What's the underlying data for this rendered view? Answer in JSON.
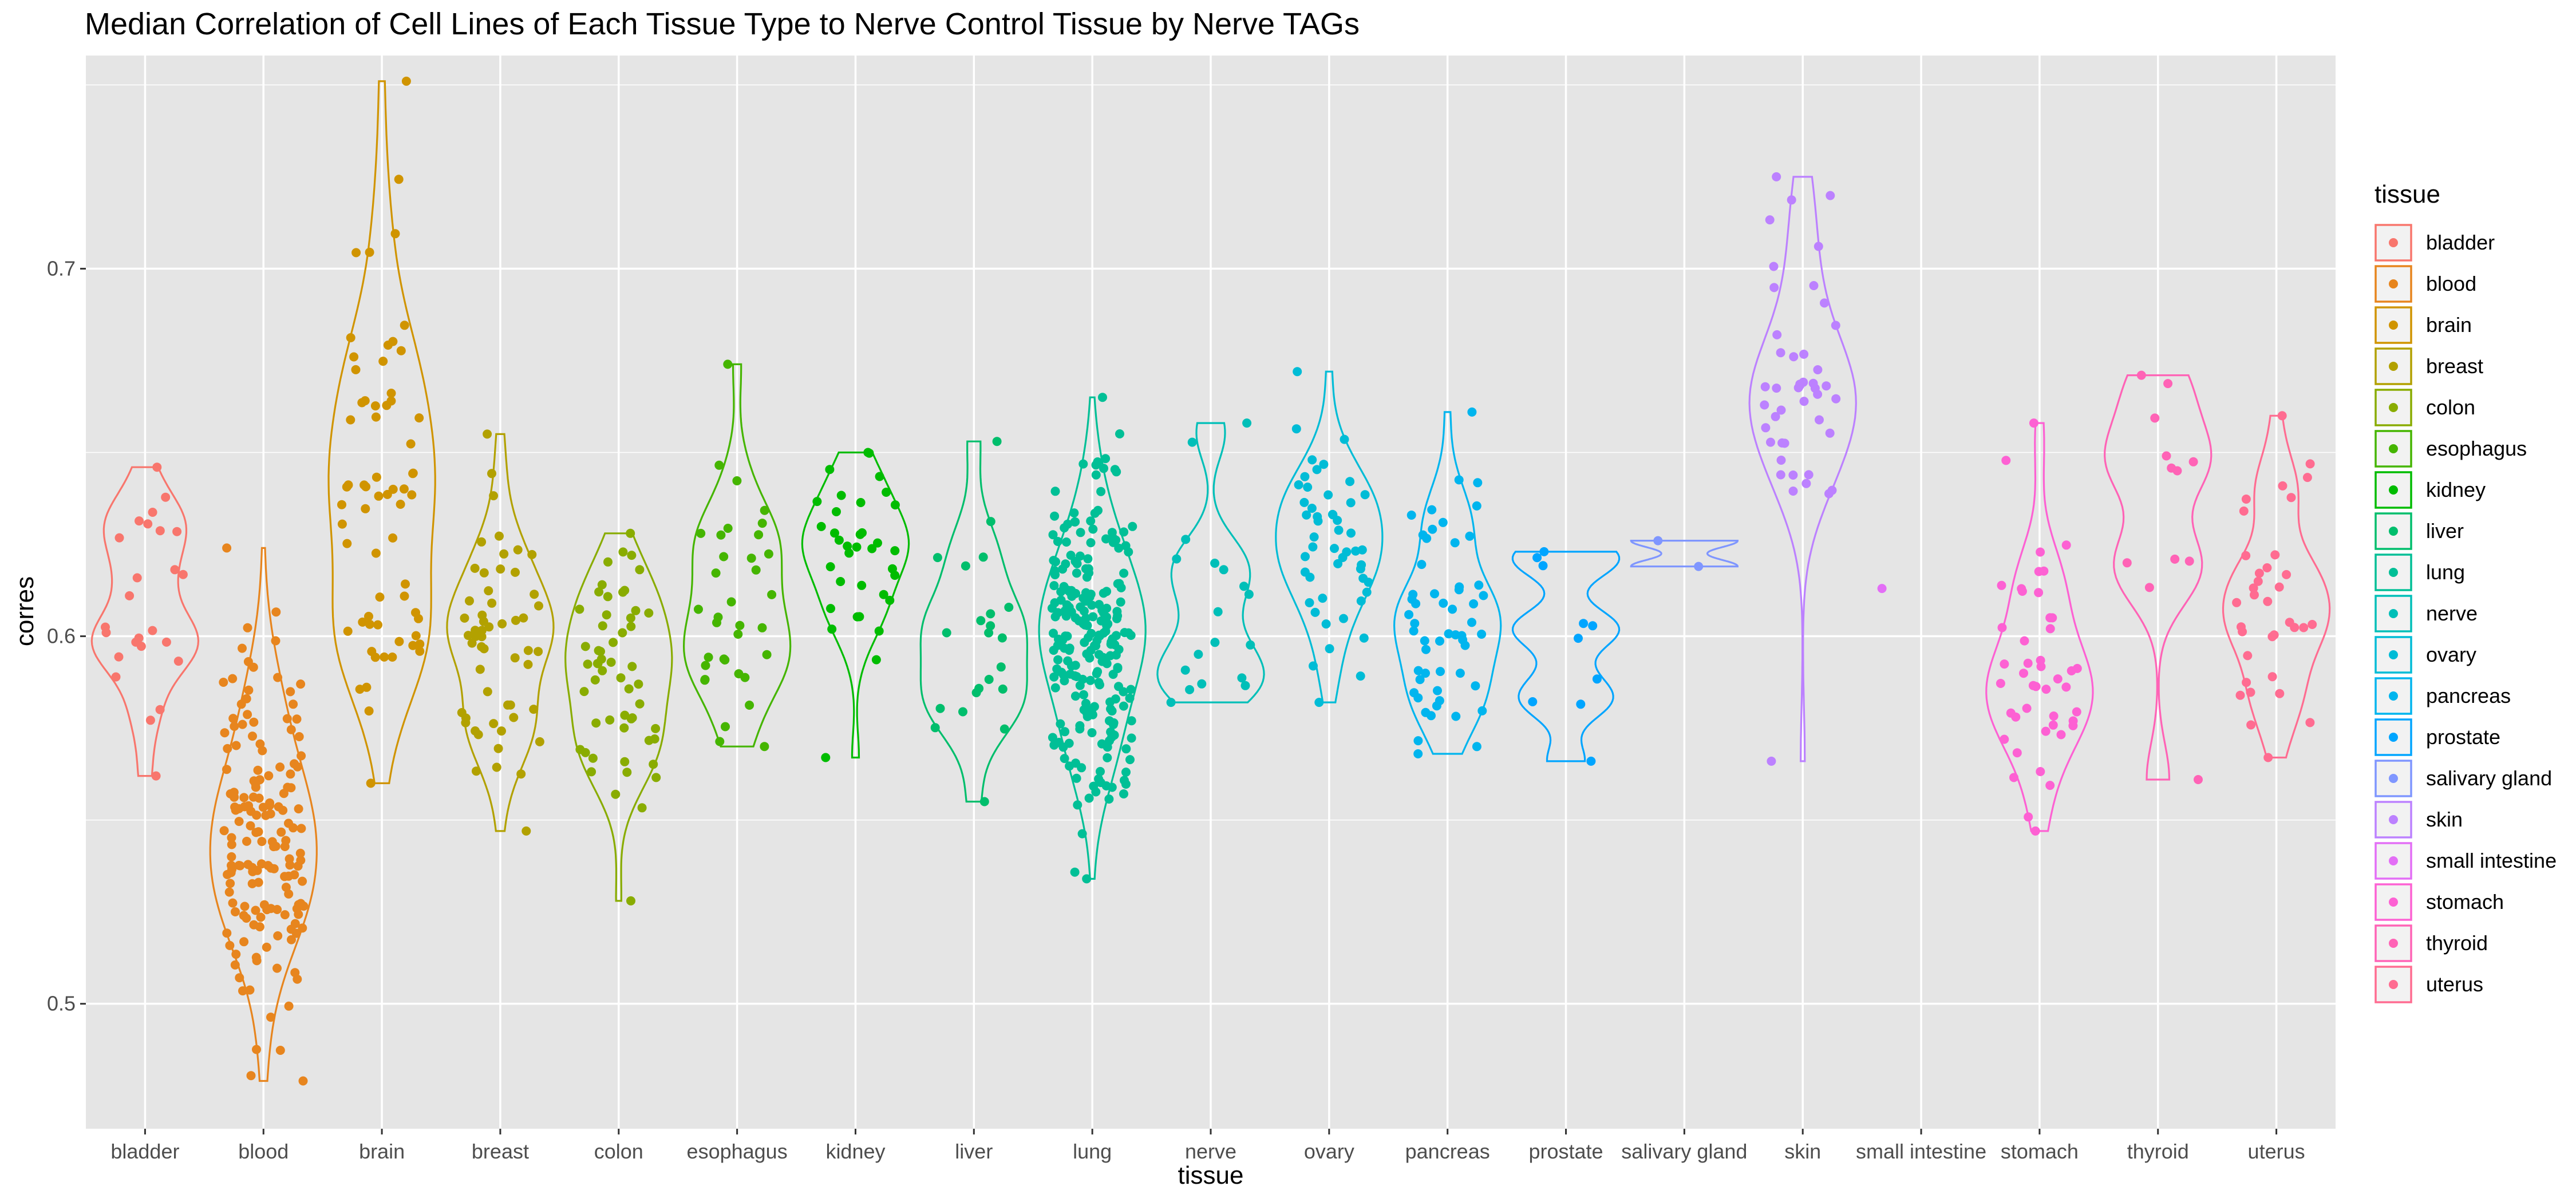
{
  "chart_data": {
    "type": "violin",
    "title": "Median Correlation of Cell Lines of Each Tissue Type to Nerve Control Tissue by Nerve TAGs",
    "xlabel": "tissue",
    "ylabel": "corres",
    "ylim": [
      0.466,
      0.758
    ],
    "y_ticks": [
      0.5,
      0.6,
      0.7
    ],
    "y_tick_labels": [
      "0.5",
      "0.6",
      "0.7"
    ],
    "grid": true,
    "legend": {
      "title": "tissue",
      "position": "right"
    },
    "categories": [
      "bladder",
      "blood",
      "brain",
      "breast",
      "colon",
      "esophagus",
      "kidney",
      "liver",
      "lung",
      "nerve",
      "ovary",
      "pancreas",
      "prostate",
      "salivary gland",
      "skin",
      "small intestine",
      "stomach",
      "thyroid",
      "uterus"
    ],
    "series": [
      {
        "name": "bladder",
        "color": "#F8766D",
        "n": 25,
        "min": 0.562,
        "max": 0.646,
        "median": 0.612,
        "spread": 0.018
      },
      {
        "name": "blood",
        "color": "#E7851E",
        "n": 160,
        "min": 0.479,
        "max": 0.624,
        "median": 0.543,
        "spread": 0.025
      },
      {
        "name": "brain",
        "color": "#D09400",
        "n": 65,
        "min": 0.56,
        "max": 0.751,
        "median": 0.64,
        "spread": 0.03
      },
      {
        "name": "breast",
        "color": "#B2A100",
        "n": 55,
        "min": 0.547,
        "max": 0.655,
        "median": 0.6,
        "spread": 0.025
      },
      {
        "name": "colon",
        "color": "#89AC00",
        "n": 55,
        "min": 0.528,
        "max": 0.628,
        "median": 0.59,
        "spread": 0.02
      },
      {
        "name": "esophagus",
        "color": "#45B500",
        "n": 35,
        "min": 0.57,
        "max": 0.674,
        "median": 0.607,
        "spread": 0.018
      },
      {
        "name": "kidney",
        "color": "#00BC00",
        "n": 35,
        "min": 0.567,
        "max": 0.65,
        "median": 0.622,
        "spread": 0.015
      },
      {
        "name": "liver",
        "color": "#00BE6C",
        "n": 22,
        "min": 0.555,
        "max": 0.653,
        "median": 0.6,
        "spread": 0.025
      },
      {
        "name": "lung",
        "color": "#00BF96",
        "n": 230,
        "min": 0.534,
        "max": 0.665,
        "median": 0.6,
        "spread": 0.025
      },
      {
        "name": "nerve",
        "color": "#00BFB8",
        "n": 18,
        "min": 0.582,
        "max": 0.658,
        "median": 0.6,
        "spread": 0.02
      },
      {
        "name": "ovary",
        "color": "#00BCD6",
        "n": 50,
        "min": 0.582,
        "max": 0.672,
        "median": 0.622,
        "spread": 0.02
      },
      {
        "name": "pancreas",
        "color": "#00B5EE",
        "n": 55,
        "min": 0.568,
        "max": 0.661,
        "median": 0.605,
        "spread": 0.022
      },
      {
        "name": "prostate",
        "color": "#00A5FF",
        "n": 10,
        "min": 0.566,
        "max": 0.623,
        "median": 0.6,
        "spread": 0.015
      },
      {
        "name": "salivary gland",
        "color": "#7F96FF",
        "n": 2,
        "min": 0.619,
        "max": 0.626,
        "median": 0.622,
        "spread": 0.003
      },
      {
        "name": "skin",
        "color": "#BC81FF",
        "n": 45,
        "min": 0.566,
        "max": 0.725,
        "median": 0.67,
        "spread": 0.02
      },
      {
        "name": "small intestine",
        "color": "#E36EF6",
        "n": 1,
        "min": 0.613,
        "max": 0.613,
        "median": 0.613,
        "spread": 0
      },
      {
        "name": "stomach",
        "color": "#FD61D3",
        "n": 45,
        "min": 0.547,
        "max": 0.658,
        "median": 0.59,
        "spread": 0.025
      },
      {
        "name": "thyroid",
        "color": "#FF63B6",
        "n": 12,
        "min": 0.561,
        "max": 0.671,
        "median": 0.63,
        "spread": 0.025
      },
      {
        "name": "uterus",
        "color": "#FF6C91",
        "n": 35,
        "min": 0.567,
        "max": 0.66,
        "median": 0.612,
        "spread": 0.022
      }
    ]
  }
}
